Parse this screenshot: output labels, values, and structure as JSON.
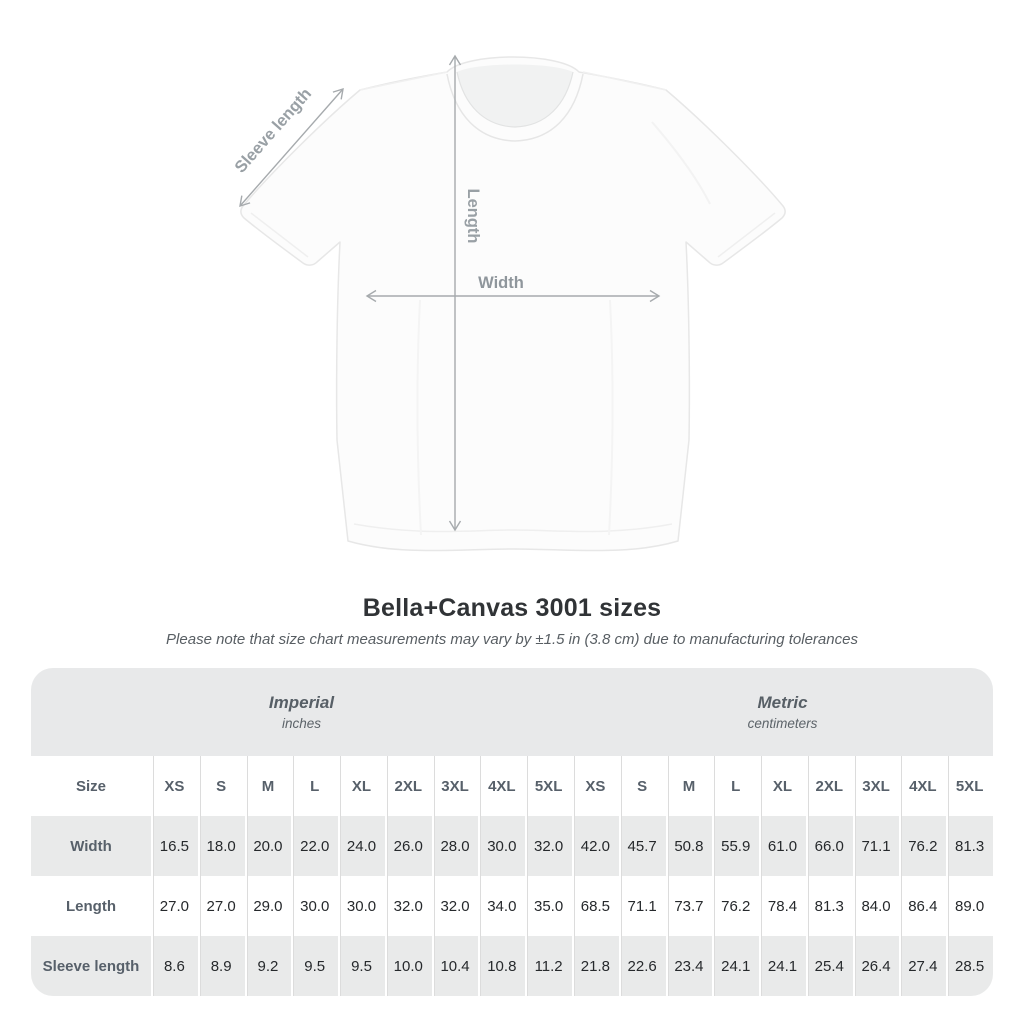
{
  "title": "Bella+Canvas 3001 sizes",
  "subtitle": "Please note that size chart measurements may vary by ±1.5 in (3.8 cm) due to manufacturing tolerances",
  "figure": {
    "sleeve_label": "Sleeve length",
    "length_label": "Length",
    "width_label": "Width"
  },
  "table": {
    "corner_header": "Size",
    "group_headers": [
      {
        "label": "Imperial",
        "unit": "inches"
      },
      {
        "label": "Metric",
        "unit": "centimeters"
      }
    ],
    "sizes": [
      "XS",
      "S",
      "M",
      "L",
      "XL",
      "2XL",
      "3XL",
      "4XL",
      "5XL"
    ],
    "rows": [
      {
        "label": "Width",
        "imperial": [
          "16.5",
          "18.0",
          "20.0",
          "22.0",
          "24.0",
          "26.0",
          "28.0",
          "30.0",
          "32.0"
        ],
        "metric": [
          "42.0",
          "45.7",
          "50.8",
          "55.9",
          "61.0",
          "66.0",
          "71.1",
          "76.2",
          "81.3"
        ]
      },
      {
        "label": "Length",
        "imperial": [
          "27.0",
          "27.0",
          "29.0",
          "30.0",
          "30.0",
          "32.0",
          "32.0",
          "34.0",
          "35.0"
        ],
        "metric": [
          "68.5",
          "71.1",
          "73.7",
          "76.2",
          "78.4",
          "81.3",
          "84.0",
          "86.4",
          "89.0"
        ]
      },
      {
        "label": "Sleeve length",
        "imperial": [
          "8.6",
          "8.9",
          "9.2",
          "9.5",
          "9.5",
          "10.0",
          "10.4",
          "10.8",
          "11.2"
        ],
        "metric": [
          "21.8",
          "22.6",
          "23.4",
          "24.1",
          "24.1",
          "25.4",
          "26.4",
          "27.4",
          "28.5"
        ]
      }
    ]
  },
  "colors": {
    "table_band_gray": "#e8e9ea",
    "row_gray": "#e9eaea",
    "header_text": "#57606a",
    "data_text": "#26292c",
    "annotation_gray": "#99a0a5",
    "arrow_gray": "#a6aaad",
    "title_text": "#303336"
  },
  "chart_data": {
    "type": "table",
    "title": "Bella+Canvas 3001 sizes",
    "note": "Please note that size chart measurements may vary by ±1.5 in (3.8 cm) due to manufacturing tolerances",
    "column_groups": [
      {
        "name": "Imperial",
        "unit": "inches",
        "sizes": [
          "XS",
          "S",
          "M",
          "L",
          "XL",
          "2XL",
          "3XL",
          "4XL",
          "5XL"
        ]
      },
      {
        "name": "Metric",
        "unit": "centimeters",
        "sizes": [
          "XS",
          "S",
          "M",
          "L",
          "XL",
          "2XL",
          "3XL",
          "4XL",
          "5XL"
        ]
      }
    ],
    "measurements": [
      {
        "name": "Width",
        "imperial_in": [
          16.5,
          18.0,
          20.0,
          22.0,
          24.0,
          26.0,
          28.0,
          30.0,
          32.0
        ],
        "metric_cm": [
          42.0,
          45.7,
          50.8,
          55.9,
          61.0,
          66.0,
          71.1,
          76.2,
          81.3
        ]
      },
      {
        "name": "Length",
        "imperial_in": [
          27.0,
          27.0,
          29.0,
          30.0,
          30.0,
          32.0,
          32.0,
          34.0,
          35.0
        ],
        "metric_cm": [
          68.5,
          71.1,
          73.7,
          76.2,
          78.4,
          81.3,
          84.0,
          86.4,
          89.0
        ]
      },
      {
        "name": "Sleeve length",
        "imperial_in": [
          8.6,
          8.9,
          9.2,
          9.5,
          9.5,
          10.0,
          10.4,
          10.8,
          11.2
        ],
        "metric_cm": [
          21.8,
          22.6,
          23.4,
          24.1,
          24.1,
          25.4,
          26.4,
          27.4,
          28.5
        ]
      }
    ],
    "diagram_dimensions": [
      "Sleeve length",
      "Length",
      "Width"
    ]
  }
}
